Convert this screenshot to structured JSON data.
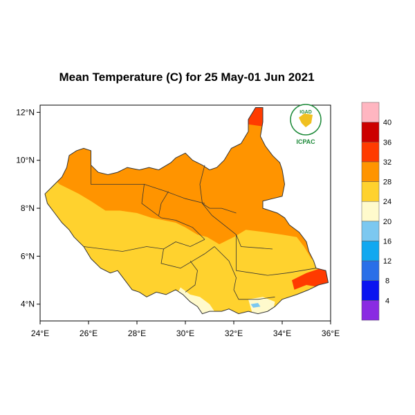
{
  "title": "Mean Temperature (C) for 25 May-01 Jun 2021",
  "logo": {
    "top_text": "IGAD",
    "bottom_text": "ICPAC"
  },
  "map": {
    "lon_range": [
      24,
      36
    ],
    "lat_range": [
      3.3,
      12.3
    ],
    "x_ticks": [
      {
        "value": 24,
        "label": "24°E"
      },
      {
        "value": 26,
        "label": "26°E"
      },
      {
        "value": 28,
        "label": "28°E"
      },
      {
        "value": 30,
        "label": "30°E"
      },
      {
        "value": 32,
        "label": "32°E"
      },
      {
        "value": 34,
        "label": "34°E"
      },
      {
        "value": 36,
        "label": "36°E"
      }
    ],
    "y_ticks": [
      {
        "value": 4,
        "label": "4°N"
      },
      {
        "value": 6,
        "label": "6°N"
      },
      {
        "value": 8,
        "label": "8°N"
      },
      {
        "value": 10,
        "label": "10°N"
      },
      {
        "value": 12,
        "label": "12°N"
      }
    ]
  },
  "colorbar": {
    "bins": [
      {
        "color": "#8a2be2"
      },
      {
        "color": "#0a14f0"
      },
      {
        "color": "#2a6fe8"
      },
      {
        "color": "#11a8f0"
      },
      {
        "color": "#7cc8f0"
      },
      {
        "color": "#fffacc"
      },
      {
        "color": "#ffd22e"
      },
      {
        "color": "#ff9400"
      },
      {
        "color": "#ff3b00"
      },
      {
        "color": "#cc0000"
      },
      {
        "color": "#ffb6c1"
      }
    ],
    "labels": [
      "4",
      "8",
      "12",
      "16",
      "20",
      "24",
      "28",
      "32",
      "36",
      "40"
    ]
  },
  "colors": {
    "band_24_28": "#ffd22e",
    "band_20_24": "#fffacc",
    "band_28_32": "#ff9400",
    "band_32_36": "#ff3b00",
    "band_16_20": "#7cc8f0",
    "boundary": "#333333",
    "logo_green": "#1e8a3a"
  }
}
